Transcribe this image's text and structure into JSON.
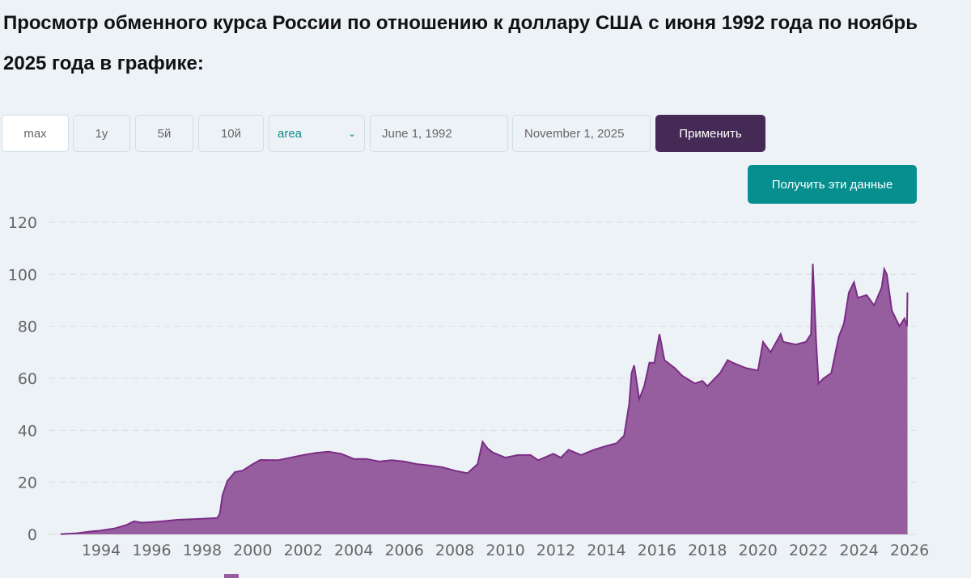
{
  "title": "Просмотр обменного курса России по отношению к доллару США с июня 1992 года по ноябрь 2025 года в графике:",
  "controls": {
    "range_buttons": [
      "max",
      "1y",
      "5й",
      "10й"
    ],
    "active_range": "max",
    "chart_type": "area",
    "start_date": "June 1, 1992",
    "end_date": "November 1, 2025",
    "apply_label": "Применить",
    "get_data_label": "Получить эти данные"
  },
  "colors": {
    "series": "#7b2d86",
    "fill": "#965e9e",
    "apply": "#452a56",
    "get_data": "#078f8f"
  },
  "chart_data": {
    "type": "area",
    "xlabel": "",
    "ylabel": "",
    "ylim": [
      0,
      120
    ],
    "xlim": [
      1992.4,
      2026
    ],
    "yticks": [
      0,
      20,
      40,
      60,
      80,
      100,
      120
    ],
    "xticks": [
      1994,
      1996,
      1998,
      2000,
      2002,
      2004,
      2006,
      2008,
      2010,
      2012,
      2014,
      2016,
      2018,
      2020,
      2022,
      2024,
      2026
    ],
    "grid": true,
    "legend": "bottom",
    "x": [
      1992.4,
      1993.0,
      1993.5,
      1994.0,
      1994.5,
      1995.0,
      1995.3,
      1995.6,
      1996.0,
      1996.5,
      1997.0,
      1998.0,
      1998.6,
      1998.7,
      1998.8,
      1999.0,
      1999.3,
      1999.6,
      2000.0,
      2000.3,
      2001.0,
      2002.0,
      2002.5,
      2003.0,
      2003.5,
      2004.0,
      2004.5,
      2005.0,
      2005.5,
      2006.0,
      2006.5,
      2007.0,
      2007.5,
      2008.0,
      2008.5,
      2008.9,
      2009.1,
      2009.3,
      2009.5,
      2010.0,
      2010.5,
      2011.0,
      2011.3,
      2011.9,
      2012.2,
      2012.5,
      2013.0,
      2013.5,
      2014.0,
      2014.4,
      2014.7,
      2014.9,
      2015.0,
      2015.1,
      2015.3,
      2015.5,
      2015.7,
      2015.9,
      2016.1,
      2016.3,
      2016.7,
      2017.0,
      2017.5,
      2017.8,
      2018.0,
      2018.5,
      2018.8,
      2019.0,
      2019.5,
      2020.0,
      2020.2,
      2020.5,
      2020.9,
      2021.0,
      2021.5,
      2021.9,
      2022.1,
      2022.17,
      2022.3,
      2022.4,
      2022.6,
      2022.9,
      2023.2,
      2023.4,
      2023.6,
      2023.8,
      2023.95,
      2024.3,
      2024.6,
      2024.9,
      2025.0,
      2025.1,
      2025.3,
      2025.6,
      2025.8,
      2025.9,
      2025.92
    ],
    "values": [
      0.1,
      0.4,
      1.0,
      1.5,
      2.2,
      3.6,
      5.0,
      4.5,
      4.7,
      5.1,
      5.6,
      6.0,
      6.3,
      8,
      15,
      20.6,
      24,
      24.5,
      27,
      28.6,
      28.5,
      30.5,
      31.3,
      31.8,
      31,
      29,
      29,
      28,
      28.5,
      28,
      27,
      26.5,
      25.8,
      24.5,
      23.5,
      27,
      35.6,
      33,
      31.5,
      29.5,
      30.5,
      30.5,
      28.5,
      31,
      29.5,
      32.5,
      30.5,
      32.5,
      34,
      35,
      38,
      50,
      62,
      65,
      52,
      57,
      66,
      66,
      77,
      67,
      64,
      61,
      58,
      59,
      57,
      62,
      67,
      66,
      64,
      63,
      74,
      70,
      77,
      74,
      73,
      74,
      77,
      104,
      75,
      58,
      60,
      62,
      76,
      81,
      93,
      97,
      91,
      92,
      88,
      95,
      102,
      100,
      86,
      80,
      83,
      80,
      93
    ]
  }
}
